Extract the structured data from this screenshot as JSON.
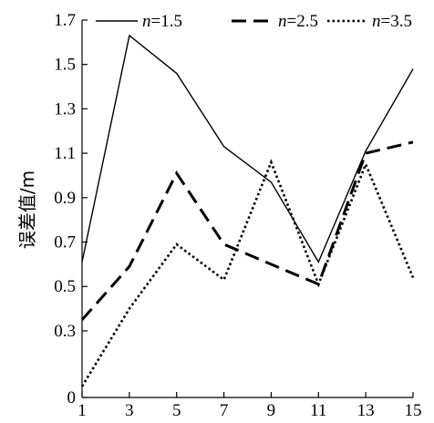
{
  "chart_data": {
    "type": "line",
    "title": "",
    "xlabel": "",
    "ylabel": "误差值/m",
    "xlim": [
      1,
      15
    ],
    "ylim": [
      0,
      1.7
    ],
    "x": [
      1,
      3,
      5,
      7,
      9,
      11,
      13,
      15
    ],
    "x_ticks": [
      "1",
      "3",
      "5",
      "7",
      "9",
      "11",
      "13",
      "15"
    ],
    "y_ticks": [
      "0",
      "0.3",
      "0.5",
      "0.7",
      "0.9",
      "1.1",
      "1.3",
      "1.5",
      "1.7"
    ],
    "y_tick_values": [
      0,
      0.3,
      0.5,
      0.7,
      0.9,
      1.1,
      1.3,
      1.5,
      1.7
    ],
    "legend": {
      "position": "top",
      "prefix": "n",
      "equals": "="
    },
    "series": [
      {
        "name": "n=1.5",
        "param": "1.5",
        "style": "solid",
        "values": [
          0.61,
          1.63,
          1.46,
          1.13,
          0.97,
          0.61,
          1.11,
          1.48
        ]
      },
      {
        "name": "n=2.5",
        "param": "2.5",
        "style": "dashed",
        "values": [
          0.35,
          0.59,
          1.01,
          0.69,
          0.6,
          0.51,
          1.1,
          1.15
        ]
      },
      {
        "name": "n=3.5",
        "param": "3.5",
        "style": "dotted",
        "values": [
          0.05,
          0.4,
          0.69,
          0.53,
          1.06,
          0.51,
          1.05,
          0.54
        ]
      }
    ]
  }
}
